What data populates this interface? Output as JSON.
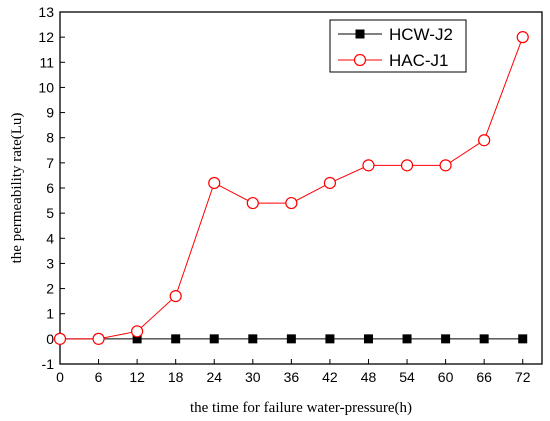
{
  "chart_data": {
    "type": "line",
    "title": "",
    "xlabel": "the time for failure water-pressure(h)",
    "ylabel": "the permeability rate(Lu)",
    "xlim": [
      0,
      75
    ],
    "ylim": [
      -1,
      13
    ],
    "xticks": [
      0,
      6,
      12,
      18,
      24,
      30,
      36,
      42,
      48,
      54,
      60,
      66,
      72
    ],
    "yticks": [
      -1,
      0,
      1,
      2,
      3,
      4,
      5,
      6,
      7,
      8,
      9,
      10,
      11,
      12,
      13
    ],
    "grid": false,
    "legend_position": "top-right",
    "series": [
      {
        "name": "HCW-J2",
        "color": "#000000",
        "marker": "filled-square",
        "x": [
          0,
          6,
          12,
          18,
          24,
          30,
          36,
          42,
          48,
          54,
          60,
          66,
          72
        ],
        "y": [
          0,
          0,
          0,
          0,
          0,
          0,
          0,
          0,
          0,
          0,
          0,
          0,
          0
        ]
      },
      {
        "name": "HAC-J1",
        "color": "#ff0000",
        "marker": "open-circle",
        "x": [
          0,
          6,
          12,
          18,
          24,
          30,
          36,
          42,
          48,
          54,
          60,
          66,
          72
        ],
        "y": [
          0,
          0,
          0.3,
          1.7,
          6.2,
          5.4,
          5.4,
          6.2,
          6.9,
          6.9,
          6.9,
          7.9,
          12
        ]
      }
    ]
  }
}
